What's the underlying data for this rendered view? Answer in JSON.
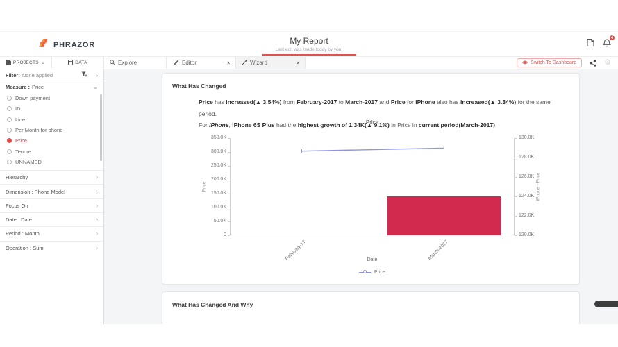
{
  "header": {
    "brand": "PHRAZOR",
    "title": "My Report",
    "subtitle": "Last edit was made today by you.",
    "notification_count": "4"
  },
  "tabbar": {
    "projects": "PROJECTS",
    "data": "DATA",
    "explore": "Explore",
    "editor": "Editor",
    "wizard": "Wizard",
    "switch_to_dashboard": "Switch To Dashboard"
  },
  "icons": {
    "close": "✕",
    "caret_down": "⌄",
    "chevron_right": "›",
    "chevron_down": "⌄",
    "gear": "⚙"
  },
  "sidebar": {
    "filter_label": "Filter:",
    "filter_value": "None applied",
    "measure_label": "Measure :",
    "measure_value": "Price",
    "measure_options": [
      {
        "label": "Down payment",
        "selected": false
      },
      {
        "label": "ID",
        "selected": false
      },
      {
        "label": "Line",
        "selected": false
      },
      {
        "label": "Per Month for phone",
        "selected": false
      },
      {
        "label": "Price",
        "selected": true
      },
      {
        "label": "Tenure",
        "selected": false
      },
      {
        "label": "UNNAMED",
        "selected": false
      }
    ],
    "sections": [
      "Hierarchy",
      "Dimension : Phone Model",
      "Focus On",
      "Date : Date",
      "Period : Month",
      "Operation : Sum"
    ]
  },
  "cards": {
    "what_has_changed": {
      "title": "What Has Changed",
      "narrative": [
        [
          {
            "t": "Price",
            "b": true
          },
          {
            "t": " has ",
            "b": false
          },
          {
            "t": "increased(▲ 3.54%)",
            "b": true
          },
          {
            "t": " from ",
            "b": false
          },
          {
            "t": "February-2017",
            "b": true
          },
          {
            "t": " to ",
            "b": false
          },
          {
            "t": "March-2017",
            "b": true
          },
          {
            "t": " and ",
            "b": false
          },
          {
            "t": "Price",
            "b": true
          },
          {
            "t": " for ",
            "b": false
          },
          {
            "t": "iPhone",
            "b": true
          },
          {
            "t": " also has ",
            "b": false
          },
          {
            "t": "increased(▲ 3.34%)",
            "b": true
          },
          {
            "t": " for the same period.",
            "b": false
          }
        ],
        [
          {
            "t": "For ",
            "b": false
          },
          {
            "t": "iPhone",
            "b": true,
            "i": true
          },
          {
            "t": ", ",
            "b": false
          },
          {
            "t": "iPhone 6S Plus",
            "b": true
          },
          {
            "t": " had the ",
            "b": false
          },
          {
            "t": "highest growth of 1.34K(▲ 9.1%)",
            "b": true
          },
          {
            "t": " in Price in ",
            "b": false
          },
          {
            "t": "current period(March-2017)",
            "b": true
          }
        ]
      ]
    },
    "what_has_changed_and_why": {
      "title": "What Has Changed And Why"
    }
  },
  "chart_data": {
    "type": "combo",
    "title": "Price",
    "xlabel": "Date",
    "categories": [
      "February-17",
      "March-2017"
    ],
    "series": [
      {
        "name": "Price",
        "type": "line",
        "axis": "left",
        "color": "#9095dd",
        "values": [
          303300,
          314000
        ]
      },
      {
        "name": "iPhone - Price",
        "type": "bar",
        "axis": "right",
        "color": "#d2294e",
        "values": [
          120000,
          124000
        ]
      }
    ],
    "left_axis": {
      "label": "Price",
      "min": 0,
      "max": 350000,
      "tick_step": 50000,
      "tick_labels": [
        "0",
        "50.0K",
        "100.0K",
        "150.0K",
        "200.0K",
        "250.0K",
        "300.0K",
        "350.0K"
      ]
    },
    "right_axis": {
      "label": "iPhone - Price",
      "min": 120000,
      "max": 130000,
      "tick_step": 2000,
      "tick_labels": [
        "120.0K",
        "122.0K",
        "124.0K",
        "126.0K",
        "128.0K",
        "130.0K"
      ]
    },
    "legend": [
      {
        "label": "Price",
        "color": "#9095dd"
      }
    ],
    "grid": false,
    "legend_position": "bottom"
  },
  "colors": {
    "accent_red": "#e4504e",
    "bar": "#d2294e",
    "line": "#9095dd",
    "badge": "#f4433c",
    "logo_orange": "#f59a3e",
    "logo_red": "#ee5340"
  }
}
